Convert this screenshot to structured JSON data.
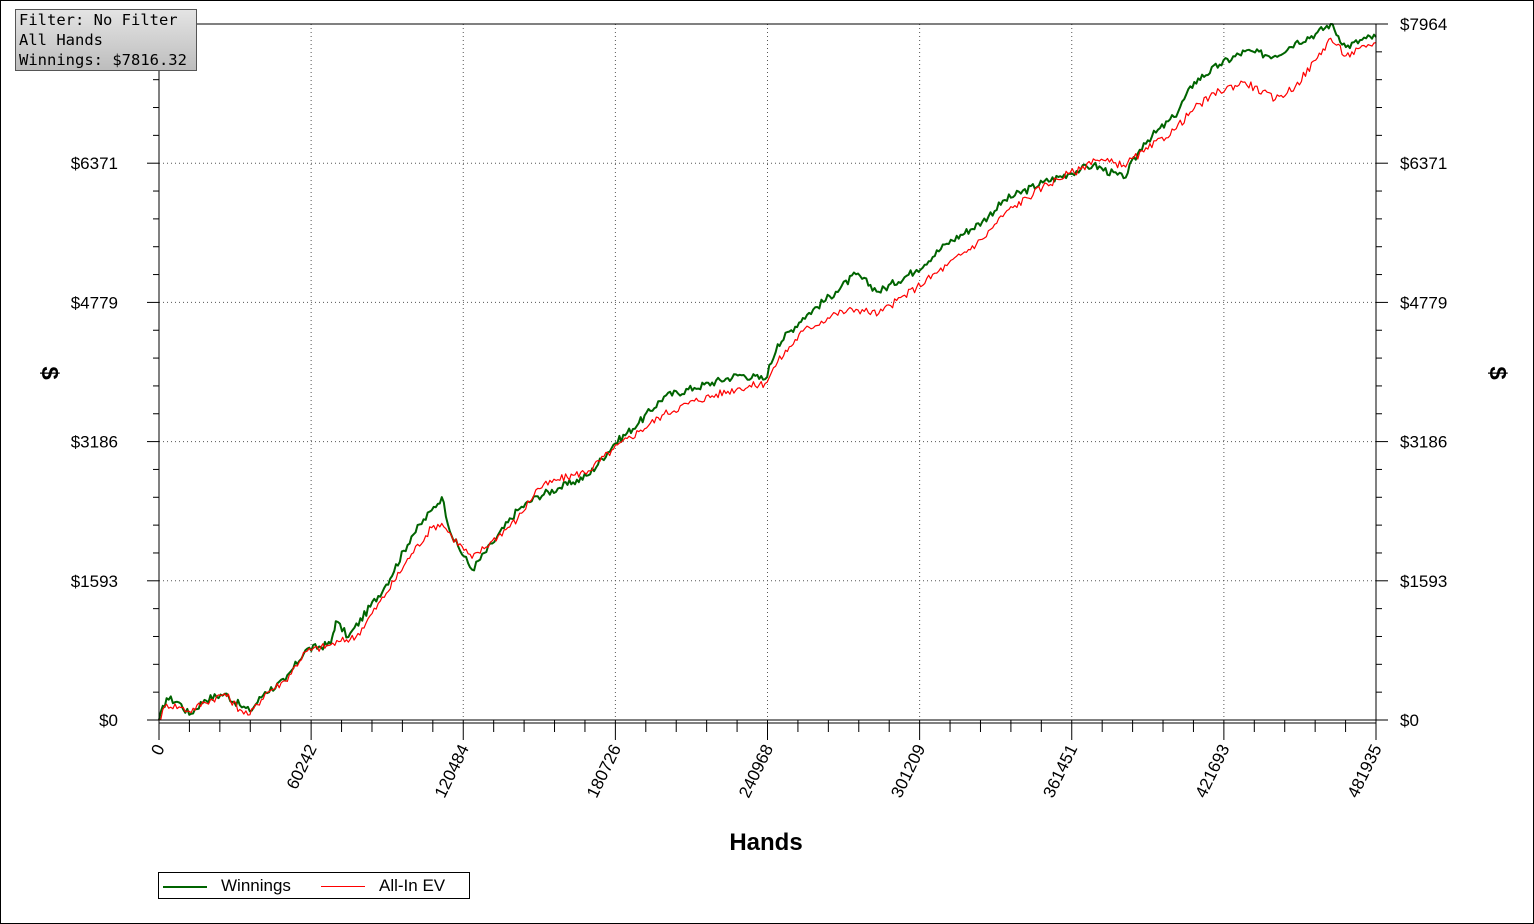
{
  "info": {
    "filter": "Filter: No Filter",
    "hands": "All Hands",
    "winnings": "Winnings: $7816.32"
  },
  "chart_data": {
    "type": "line",
    "xlabel": "Hands",
    "ylabel": "$",
    "ylabel_right": "$",
    "xlim": [
      0,
      481935
    ],
    "ylim": [
      0,
      7964
    ],
    "x_ticks": [
      "0",
      "60242",
      "120484",
      "180726",
      "240968",
      "301209",
      "361451",
      "421693",
      "481935"
    ],
    "y_ticks": [
      "$0",
      "$1593",
      "$3186",
      "$4779",
      "$6371"
    ],
    "y_ticks_right": [
      "$0",
      "$1593",
      "$3186",
      "$4779",
      "$6371",
      "$7964"
    ],
    "grid": true,
    "legend_position": "bottom-left",
    "series": [
      {
        "name": "Winnings",
        "color": "#006400",
        "points": [
          [
            0,
            0
          ],
          [
            3000,
            250
          ],
          [
            8000,
            200
          ],
          [
            12000,
            60
          ],
          [
            18000,
            230
          ],
          [
            26000,
            300
          ],
          [
            32000,
            170
          ],
          [
            36000,
            100
          ],
          [
            42000,
            320
          ],
          [
            50000,
            450
          ],
          [
            58000,
            800
          ],
          [
            68000,
            870
          ],
          [
            70000,
            1130
          ],
          [
            75000,
            950
          ],
          [
            90000,
            1550
          ],
          [
            100000,
            2100
          ],
          [
            108000,
            2400
          ],
          [
            112000,
            2550
          ],
          [
            116000,
            2100
          ],
          [
            124000,
            1720
          ],
          [
            132000,
            2020
          ],
          [
            142000,
            2400
          ],
          [
            150000,
            2560
          ],
          [
            158000,
            2650
          ],
          [
            164000,
            2720
          ],
          [
            170000,
            2800
          ],
          [
            180000,
            3150
          ],
          [
            190000,
            3400
          ],
          [
            200000,
            3700
          ],
          [
            212000,
            3800
          ],
          [
            230000,
            3950
          ],
          [
            240000,
            3900
          ],
          [
            245000,
            4300
          ],
          [
            255000,
            4600
          ],
          [
            268000,
            4900
          ],
          [
            276000,
            5100
          ],
          [
            285000,
            4900
          ],
          [
            300000,
            5150
          ],
          [
            312000,
            5450
          ],
          [
            326000,
            5700
          ],
          [
            335000,
            5950
          ],
          [
            350000,
            6150
          ],
          [
            360000,
            6250
          ],
          [
            365000,
            6300
          ],
          [
            370000,
            6350
          ],
          [
            382000,
            6200
          ],
          [
            390000,
            6600
          ],
          [
            402000,
            6900
          ],
          [
            410000,
            7300
          ],
          [
            420000,
            7500
          ],
          [
            430000,
            7650
          ],
          [
            442000,
            7600
          ],
          [
            450000,
            7750
          ],
          [
            458000,
            7850
          ],
          [
            464000,
            7964
          ],
          [
            470000,
            7700
          ],
          [
            478000,
            7800
          ],
          [
            481935,
            7816
          ]
        ]
      },
      {
        "name": "All-In EV",
        "color": "#ff0000",
        "points": [
          [
            0,
            0
          ],
          [
            3000,
            180
          ],
          [
            8000,
            150
          ],
          [
            12000,
            100
          ],
          [
            18000,
            200
          ],
          [
            26000,
            300
          ],
          [
            32000,
            120
          ],
          [
            36000,
            60
          ],
          [
            42000,
            300
          ],
          [
            50000,
            450
          ],
          [
            58000,
            780
          ],
          [
            68000,
            860
          ],
          [
            72000,
            900
          ],
          [
            78000,
            950
          ],
          [
            90000,
            1450
          ],
          [
            100000,
            1900
          ],
          [
            108000,
            2200
          ],
          [
            112000,
            2250
          ],
          [
            116000,
            2100
          ],
          [
            124000,
            1850
          ],
          [
            132000,
            2050
          ],
          [
            142000,
            2300
          ],
          [
            150000,
            2650
          ],
          [
            158000,
            2750
          ],
          [
            164000,
            2800
          ],
          [
            170000,
            2850
          ],
          [
            180000,
            3100
          ],
          [
            190000,
            3300
          ],
          [
            200000,
            3500
          ],
          [
            212000,
            3650
          ],
          [
            230000,
            3800
          ],
          [
            240000,
            3850
          ],
          [
            245000,
            4100
          ],
          [
            255000,
            4450
          ],
          [
            268000,
            4650
          ],
          [
            276000,
            4700
          ],
          [
            285000,
            4650
          ],
          [
            300000,
            4950
          ],
          [
            312000,
            5200
          ],
          [
            326000,
            5500
          ],
          [
            335000,
            5800
          ],
          [
            350000,
            6100
          ],
          [
            360000,
            6250
          ],
          [
            365000,
            6300
          ],
          [
            370000,
            6420
          ],
          [
            382000,
            6350
          ],
          [
            390000,
            6500
          ],
          [
            402000,
            6750
          ],
          [
            410000,
            7000
          ],
          [
            420000,
            7200
          ],
          [
            430000,
            7300
          ],
          [
            442000,
            7100
          ],
          [
            450000,
            7250
          ],
          [
            458000,
            7550
          ],
          [
            464000,
            7800
          ],
          [
            470000,
            7600
          ],
          [
            478000,
            7700
          ],
          [
            481935,
            7750
          ]
        ]
      }
    ]
  }
}
